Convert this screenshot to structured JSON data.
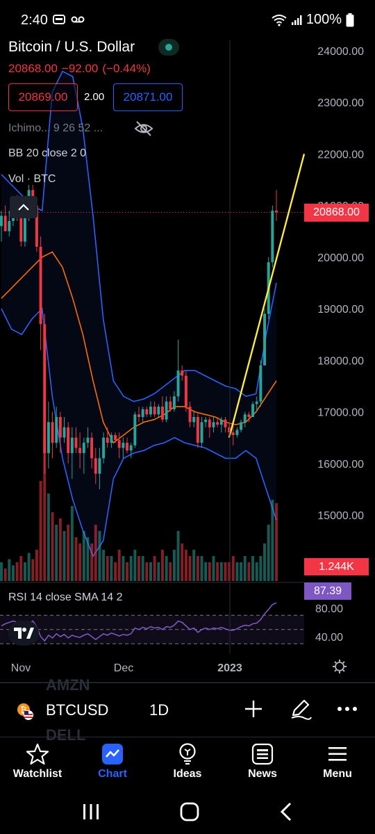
{
  "status_bar": {
    "time": "2:40",
    "battery": "100%"
  },
  "symbol": {
    "title": "Bitcoin / U.S. Dollar",
    "last_price": "20868.00",
    "change": "−92.00",
    "change_pct": "(−0.44%)",
    "bid": "20869.00",
    "spread": "2.00",
    "ask": "20871.00"
  },
  "indicators": {
    "ichimoku": "Ichimo... 9 26 52 ...",
    "bb": "BB 20 close 2 0",
    "vol": "Vol · BTC",
    "rsi": "RSI 14 close SMA 14 2"
  },
  "labels": {
    "current_price": "20868.00",
    "volume": "1.244K",
    "rsi_value": "87.39"
  },
  "chart_data": {
    "type": "candlestick",
    "price_axis": {
      "ticks": [
        "24000.00",
        "23000.00",
        "22000.00",
        "21000.00",
        "20000.00",
        "19000.00",
        "18000.00",
        "17000.00",
        "16000.00",
        "15000.00"
      ],
      "range": [
        14000,
        24600
      ]
    },
    "rsi_axis": {
      "ticks": [
        "80.00",
        "40.00"
      ],
      "range": [
        20,
        90
      ]
    },
    "x_axis": {
      "ticks": [
        "Nov",
        "Dec",
        "2023"
      ]
    },
    "last_price": 20868,
    "bb_upper": [
      21600,
      21400,
      21200,
      21000,
      20900,
      23200,
      23600,
      23500,
      22500,
      20800,
      18800,
      17600,
      17300,
      17200,
      17250,
      17350,
      17500,
      17650,
      17800,
      17800,
      17700,
      17600,
      17500,
      17450,
      17300,
      17350,
      18500,
      19500
    ],
    "bb_basis": [
      19200,
      19400,
      19600,
      19800,
      20000,
      20100,
      19800,
      19200,
      18500,
      17600,
      16800,
      16400,
      16550,
      16700,
      16800,
      16850,
      16950,
      17100,
      17100,
      17000,
      16950,
      16900,
      16800,
      16750,
      16800,
      17000,
      17300,
      17600
    ],
    "bb_lower": [
      19000,
      18600,
      18500,
      18800,
      19000,
      17300,
      16100,
      15300,
      14700,
      14200,
      14500,
      15700,
      16100,
      16200,
      16250,
      16350,
      16400,
      16500,
      16400,
      16350,
      16300,
      16200,
      16100,
      16100,
      16250,
      16100,
      15500,
      14900
    ],
    "candles": [
      {
        "o": 20600,
        "h": 20900,
        "l": 20300,
        "c": 20800
      },
      {
        "o": 20800,
        "h": 21000,
        "l": 20500,
        "c": 20500
      },
      {
        "o": 20500,
        "h": 20900,
        "l": 20400,
        "c": 20700
      },
      {
        "o": 20700,
        "h": 21000,
        "l": 20600,
        "c": 20900
      },
      {
        "o": 20900,
        "h": 21200,
        "l": 20700,
        "c": 20800
      },
      {
        "o": 20800,
        "h": 21100,
        "l": 20200,
        "c": 20300
      },
      {
        "o": 20300,
        "h": 20900,
        "l": 20200,
        "c": 20800
      },
      {
        "o": 20800,
        "h": 21400,
        "l": 20700,
        "c": 21300
      },
      {
        "o": 21300,
        "h": 21400,
        "l": 20900,
        "c": 21000
      },
      {
        "o": 21000,
        "h": 21100,
        "l": 20100,
        "c": 20200
      },
      {
        "o": 20200,
        "h": 20400,
        "l": 18200,
        "c": 18700
      },
      {
        "o": 18700,
        "h": 18900,
        "l": 15800,
        "c": 16200
      },
      {
        "o": 16200,
        "h": 17200,
        "l": 15900,
        "c": 16800
      },
      {
        "o": 16800,
        "h": 17000,
        "l": 16100,
        "c": 16400
      },
      {
        "o": 16400,
        "h": 17100,
        "l": 16300,
        "c": 16900
      },
      {
        "o": 16900,
        "h": 17000,
        "l": 16200,
        "c": 16500
      },
      {
        "o": 16500,
        "h": 16900,
        "l": 16400,
        "c": 16700
      },
      {
        "o": 16700,
        "h": 16800,
        "l": 16000,
        "c": 16200
      },
      {
        "o": 16200,
        "h": 16700,
        "l": 15700,
        "c": 16500
      },
      {
        "o": 16500,
        "h": 16700,
        "l": 16200,
        "c": 16300
      },
      {
        "o": 16300,
        "h": 16600,
        "l": 15900,
        "c": 16200
      },
      {
        "o": 16200,
        "h": 16500,
        "l": 15800,
        "c": 16400
      },
      {
        "o": 16400,
        "h": 16700,
        "l": 16300,
        "c": 16500
      },
      {
        "o": 16500,
        "h": 16600,
        "l": 15900,
        "c": 16100
      },
      {
        "o": 16100,
        "h": 16300,
        "l": 15600,
        "c": 15800
      },
      {
        "o": 15800,
        "h": 16300,
        "l": 15500,
        "c": 16100
      },
      {
        "o": 16100,
        "h": 16600,
        "l": 16000,
        "c": 16500
      },
      {
        "o": 16500,
        "h": 16700,
        "l": 16300,
        "c": 16400
      },
      {
        "o": 16400,
        "h": 16600,
        "l": 16300,
        "c": 16550
      },
      {
        "o": 16550,
        "h": 16600,
        "l": 16400,
        "c": 16450
      },
      {
        "o": 16450,
        "h": 16600,
        "l": 16100,
        "c": 16300
      },
      {
        "o": 16300,
        "h": 16500,
        "l": 16100,
        "c": 16400
      },
      {
        "o": 16400,
        "h": 16500,
        "l": 16200,
        "c": 16250
      },
      {
        "o": 16250,
        "h": 16400,
        "l": 16100,
        "c": 16350
      },
      {
        "o": 16350,
        "h": 17000,
        "l": 16300,
        "c": 16950
      },
      {
        "o": 16950,
        "h": 17100,
        "l": 16800,
        "c": 16900
      },
      {
        "o": 16900,
        "h": 17100,
        "l": 16800,
        "c": 17050
      },
      {
        "o": 17050,
        "h": 17100,
        "l": 16900,
        "c": 16950
      },
      {
        "o": 16950,
        "h": 17200,
        "l": 16900,
        "c": 17100
      },
      {
        "o": 17100,
        "h": 17200,
        "l": 16900,
        "c": 16950
      },
      {
        "o": 16950,
        "h": 17150,
        "l": 16900,
        "c": 17100
      },
      {
        "o": 17100,
        "h": 17300,
        "l": 16800,
        "c": 16850
      },
      {
        "o": 16850,
        "h": 17300,
        "l": 16800,
        "c": 17200
      },
      {
        "o": 17200,
        "h": 17300,
        "l": 17000,
        "c": 17050
      },
      {
        "o": 17050,
        "h": 17400,
        "l": 17000,
        "c": 17300
      },
      {
        "o": 17300,
        "h": 18400,
        "l": 17200,
        "c": 17800
      },
      {
        "o": 17800,
        "h": 17900,
        "l": 17600,
        "c": 17700
      },
      {
        "o": 17700,
        "h": 17800,
        "l": 17000,
        "c": 17100
      },
      {
        "o": 17100,
        "h": 17200,
        "l": 16700,
        "c": 16800
      },
      {
        "o": 16800,
        "h": 17000,
        "l": 16700,
        "c": 16900
      },
      {
        "o": 16900,
        "h": 17000,
        "l": 16300,
        "c": 16400
      },
      {
        "o": 16400,
        "h": 16900,
        "l": 16300,
        "c": 16800
      },
      {
        "o": 16800,
        "h": 16900,
        "l": 16700,
        "c": 16850
      },
      {
        "o": 16850,
        "h": 16900,
        "l": 16500,
        "c": 16700
      },
      {
        "o": 16700,
        "h": 16900,
        "l": 16600,
        "c": 16800
      },
      {
        "o": 16800,
        "h": 16900,
        "l": 16700,
        "c": 16750
      },
      {
        "o": 16750,
        "h": 16900,
        "l": 16600,
        "c": 16850
      },
      {
        "o": 16850,
        "h": 16900,
        "l": 16600,
        "c": 16700
      },
      {
        "o": 16700,
        "h": 16800,
        "l": 16500,
        "c": 16600
      },
      {
        "o": 16600,
        "h": 16750,
        "l": 16350,
        "c": 16550
      },
      {
        "o": 16550,
        "h": 16700,
        "l": 16500,
        "c": 16650
      },
      {
        "o": 16650,
        "h": 16850,
        "l": 16600,
        "c": 16800
      },
      {
        "o": 16800,
        "h": 17000,
        "l": 16700,
        "c": 16950
      },
      {
        "o": 16950,
        "h": 17000,
        "l": 16800,
        "c": 16900
      },
      {
        "o": 16900,
        "h": 17200,
        "l": 16900,
        "c": 17150
      },
      {
        "o": 17150,
        "h": 17300,
        "l": 17000,
        "c": 17200
      },
      {
        "o": 17200,
        "h": 18000,
        "l": 17100,
        "c": 17900
      },
      {
        "o": 17900,
        "h": 19000,
        "l": 17900,
        "c": 18900
      },
      {
        "o": 18900,
        "h": 20000,
        "l": 18800,
        "c": 19900
      },
      {
        "o": 19900,
        "h": 21000,
        "l": 19800,
        "c": 20900
      },
      {
        "o": 20900,
        "h": 21300,
        "l": 20700,
        "c": 20868
      }
    ],
    "volume": [
      0.3,
      0.2,
      0.35,
      0.25,
      0.3,
      0.4,
      0.3,
      0.45,
      0.35,
      0.5,
      1.6,
      2.3,
      1.4,
      1.1,
      0.9,
      1.0,
      0.8,
      0.9,
      1.2,
      0.7,
      0.6,
      0.8,
      0.7,
      0.6,
      0.9,
      0.8,
      0.5,
      0.4,
      0.4,
      0.3,
      0.5,
      0.4,
      0.3,
      0.4,
      0.5,
      0.4,
      0.4,
      0.3,
      0.3,
      0.4,
      0.3,
      0.5,
      0.4,
      0.3,
      0.5,
      0.8,
      0.6,
      0.5,
      0.4,
      0.5,
      0.4,
      0.4,
      0.3,
      0.3,
      0.4,
      0.3,
      0.3,
      0.3,
      0.3,
      0.4,
      0.3,
      0.3,
      0.4,
      0.3,
      0.4,
      0.3,
      0.4,
      0.6,
      0.9,
      1.3,
      1.244
    ],
    "rsi": [
      55,
      58,
      60,
      62,
      60,
      55,
      52,
      58,
      62,
      54,
      40,
      34,
      42,
      38,
      44,
      40,
      43,
      38,
      42,
      40,
      39,
      42,
      44,
      40,
      36,
      40,
      44,
      42,
      45,
      43,
      41,
      43,
      42,
      44,
      52,
      50,
      53,
      51,
      54,
      52,
      53,
      50,
      54,
      53,
      56,
      62,
      60,
      55,
      50,
      52,
      46,
      50,
      52,
      50,
      52,
      51,
      53,
      51,
      49,
      49,
      51,
      54,
      56,
      55,
      58,
      59,
      64,
      72,
      78,
      85,
      87.39
    ],
    "trendline": {
      "from": 16500,
      "to": 22000
    }
  },
  "toolbar": {
    "symbol": "BTCUSD",
    "interval": "1D",
    "ghost_above": "AMZN",
    "ghost_below": "DELL"
  },
  "nav": {
    "items": [
      {
        "label": "Watchlist",
        "icon": "star-icon"
      },
      {
        "label": "Chart",
        "icon": "chart-icon"
      },
      {
        "label": "Ideas",
        "icon": "lightbulb-icon"
      },
      {
        "label": "News",
        "icon": "news-icon"
      },
      {
        "label": "Menu",
        "icon": "menu-icon"
      }
    ],
    "active": "Chart"
  },
  "colors": {
    "up": "#26a69a",
    "down": "#f23645",
    "bb_band": "#2962ff",
    "bb_basis": "#ff6d00",
    "trendline": "#ffeb3b",
    "rsi": "#7e57c2",
    "accent": "#2962ff"
  }
}
